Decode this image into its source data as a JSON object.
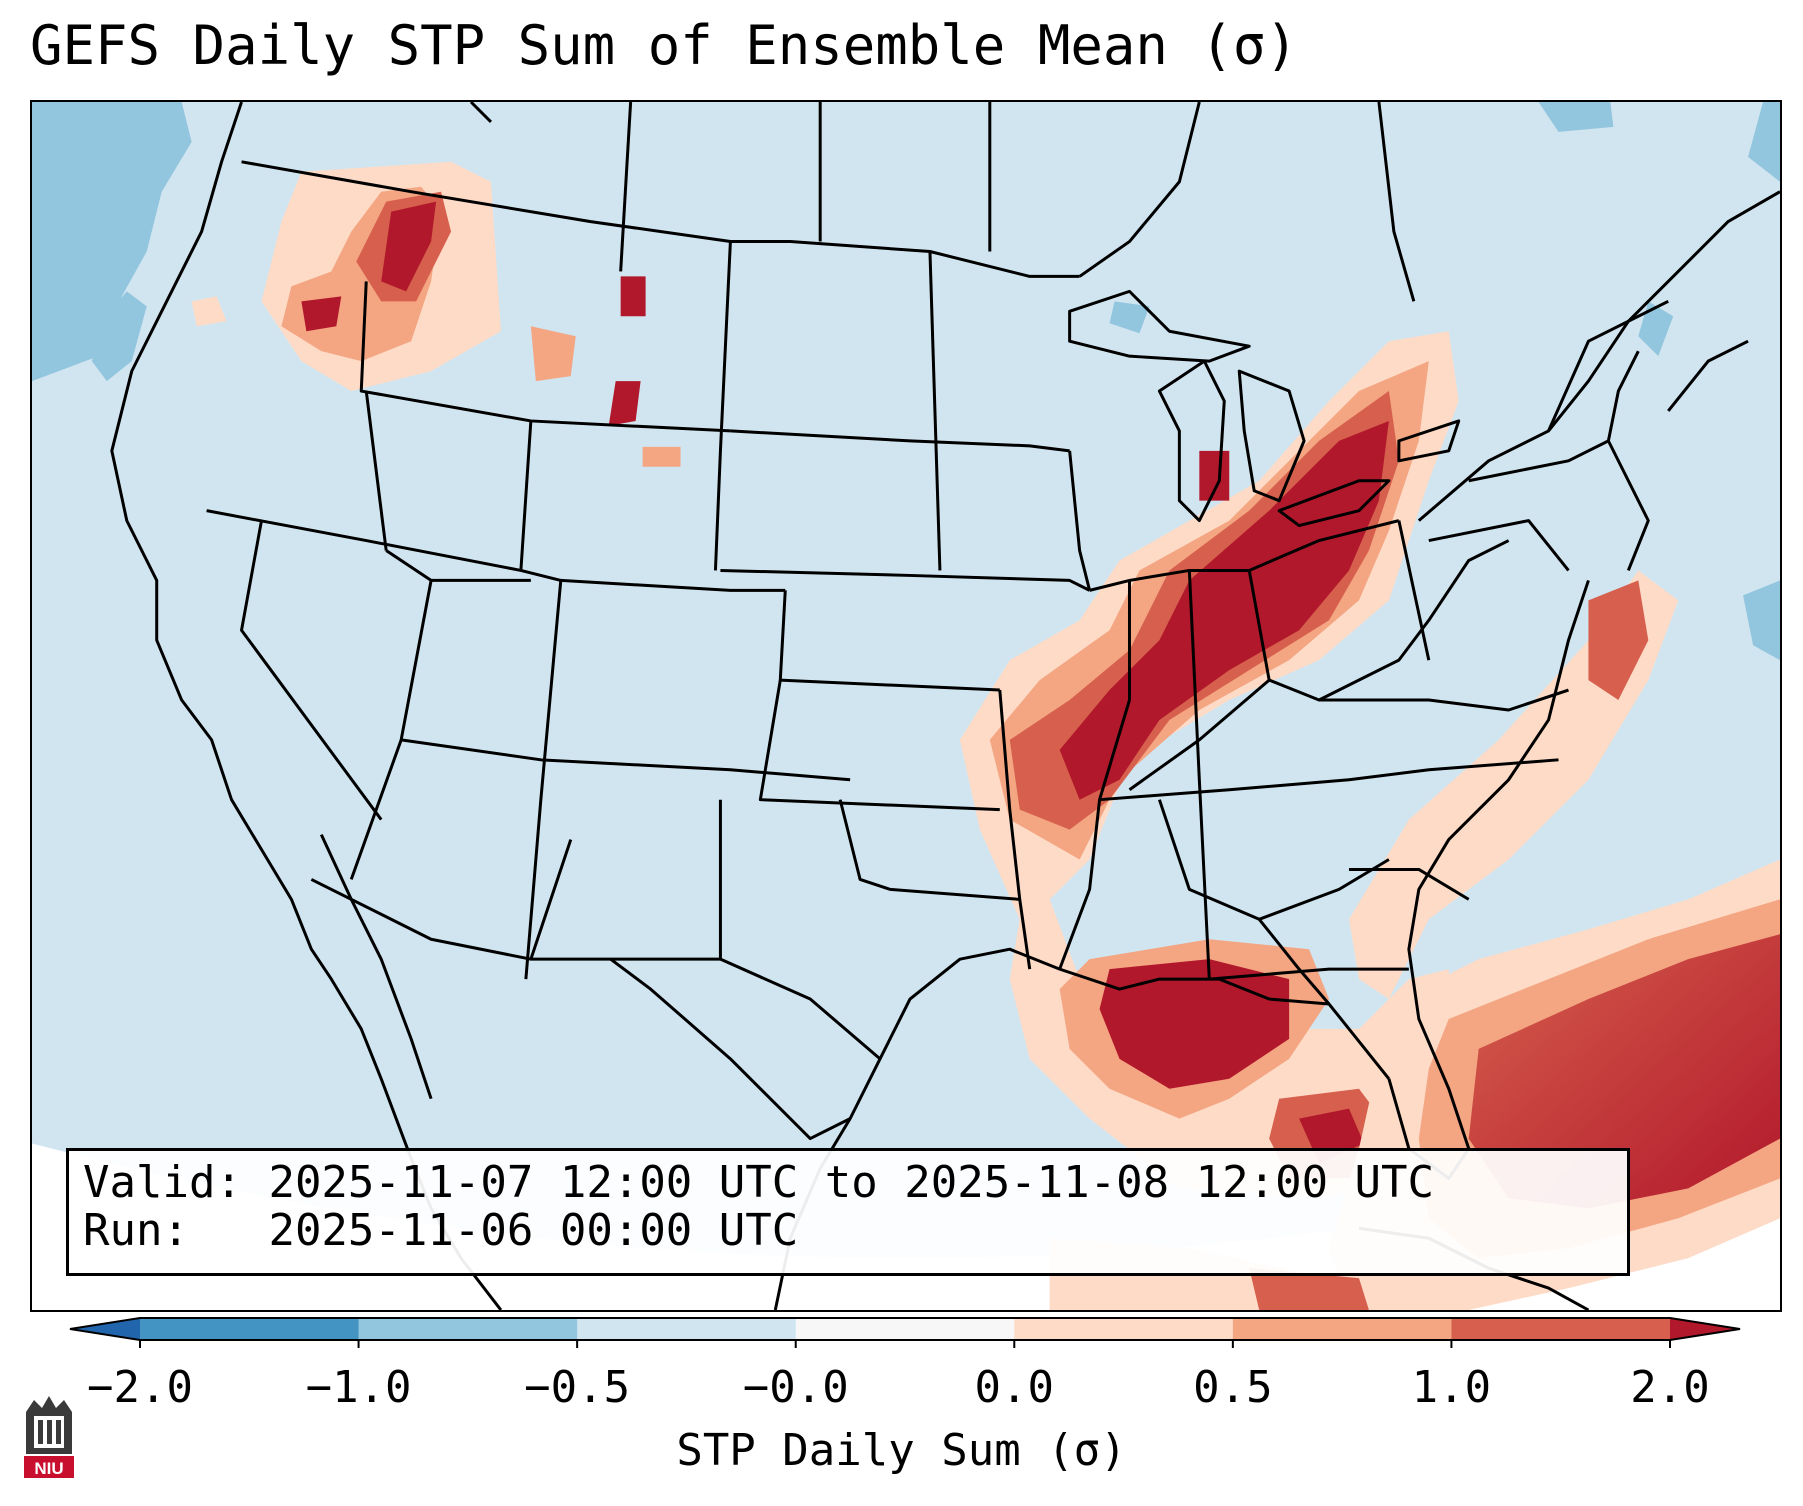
{
  "title": "GEFS Daily STP Sum of Ensemble Mean (σ)",
  "info": {
    "valid_label": "Valid:",
    "valid_range": "2025-11-07 12:00 UTC to 2025-11-08 12:00 UTC",
    "run_label": "Run:",
    "run_time": "2025-11-06 00:00 UTC"
  },
  "colorbar": {
    "label": "STP Daily Sum (σ)",
    "ticks": [
      "−2.0",
      "−1.0",
      "−0.5",
      "−0.0",
      "0.0",
      "0.5",
      "1.0",
      "2.0"
    ],
    "bins": [
      {
        "range": "<-2.0",
        "color": "#2166ac"
      },
      {
        "range": "-2.0 to -1.0",
        "color": "#4393c3"
      },
      {
        "range": "-1.0 to -0.5",
        "color": "#92c5de"
      },
      {
        "range": "-0.5 to -0.0",
        "color": "#d1e5f0"
      },
      {
        "range": "-0.0 to 0.0",
        "color": "#f7f7f7"
      },
      {
        "range": "0.0 to 0.5",
        "color": "#fddbc7"
      },
      {
        "range": "0.5 to 1.0",
        "color": "#f4a582"
      },
      {
        "range": "1.0 to 2.0",
        "color": "#d6604d"
      },
      {
        "range": ">2.0",
        "color": "#b2182b"
      }
    ]
  },
  "map": {
    "background_value_color": "#d1e5f0",
    "highlight_regions": [
      "Ohio Valley / Tennessee Valley",
      "Lower Mississippi Valley",
      "Gulf Coast / northern Gulf of Mexico",
      "Western Atlantic east of Florida",
      "Interior Northwest",
      "Great Lakes to New York"
    ]
  },
  "logo": {
    "text": "NIU"
  }
}
